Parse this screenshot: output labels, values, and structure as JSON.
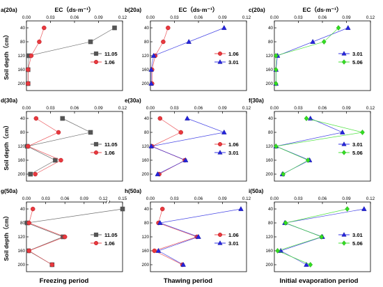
{
  "figure": {
    "ylabel": "Soil depth（cm）",
    "column_labels": [
      "Freezing period",
      "Thawing period",
      "Initial evaporation period"
    ]
  },
  "colors": {
    "11.05": "#555555",
    "1.06": "#e8393f",
    "3.01": "#2424e0",
    "5.06": "#33dd22"
  },
  "chart_data": [
    {
      "type": "line",
      "panel": "a(20a)",
      "xlabel": "EC（ds·m⁻¹）",
      "xlim": [
        0,
        0.12
      ],
      "xticks": [
        0.0,
        0.03,
        0.06,
        0.09,
        0.12
      ],
      "xtick_labels": [
        "0.00",
        "0.03",
        "0.06",
        "0.09",
        "0.12"
      ],
      "ylim": [
        20,
        220
      ],
      "yticks": [
        40,
        80,
        120,
        160,
        200
      ],
      "series": [
        {
          "name": "11.05",
          "marker": "square",
          "x": [
            0.11,
            0.08,
            0.003,
            0.002,
            0.002
          ],
          "y": [
            40,
            80,
            120,
            160,
            200
          ]
        },
        {
          "name": "1.06",
          "marker": "circle",
          "x": [
            0.022,
            0.016,
            0.006,
            0.002,
            0.002
          ],
          "y": [
            40,
            80,
            120,
            160,
            200
          ]
        }
      ]
    },
    {
      "type": "line",
      "panel": "b(20a)",
      "xlabel": "EC（ds·m⁻¹）",
      "xlim": [
        0,
        0.12
      ],
      "xticks": [
        0.0,
        0.03,
        0.06,
        0.09,
        0.12
      ],
      "xtick_labels": [
        "0.00",
        "0.03",
        "0.06",
        "0.09",
        "0.12"
      ],
      "ylim": [
        20,
        220
      ],
      "yticks": [
        40,
        80,
        120,
        160,
        200
      ],
      "series": [
        {
          "name": "1.06",
          "marker": "circle",
          "x": [
            0.022,
            0.016,
            0.006,
            0.002,
            0.002
          ],
          "y": [
            40,
            80,
            120,
            160,
            200
          ]
        },
        {
          "name": "3.01",
          "marker": "triangle",
          "x": [
            0.092,
            0.048,
            0.004,
            0.001,
            0.001
          ],
          "y": [
            40,
            80,
            120,
            160,
            200
          ]
        }
      ]
    },
    {
      "type": "line",
      "panel": "c(20a)",
      "xlabel": "EC（ds·m⁻¹）",
      "xlim": [
        0,
        0.12
      ],
      "xticks": [
        0.0,
        0.03,
        0.06,
        0.09,
        0.12
      ],
      "xtick_labels": [
        "0.00",
        "0.03",
        "0.06",
        "0.09",
        "0.12"
      ],
      "ylim": [
        20,
        220
      ],
      "yticks": [
        40,
        80,
        120,
        160,
        200
      ],
      "series": [
        {
          "name": "3.01",
          "marker": "triangle",
          "x": [
            0.092,
            0.048,
            0.004,
            0.002,
            0.002
          ],
          "y": [
            40,
            80,
            120,
            160,
            200
          ]
        },
        {
          "name": "5.06",
          "marker": "diamond",
          "x": [
            0.08,
            0.062,
            0.002,
            0.002,
            0.002
          ],
          "y": [
            40,
            80,
            120,
            160,
            200
          ]
        }
      ]
    },
    {
      "type": "line",
      "panel": "d(30a)",
      "xlabel": "",
      "xlim": [
        0,
        0.12
      ],
      "xticks": [
        0.0,
        0.03,
        0.06,
        0.09,
        0.12
      ],
      "xtick_labels": [
        "0.00",
        "0.03",
        "0.06",
        "0.09",
        "0.12"
      ],
      "ylim": [
        20,
        220
      ],
      "yticks": [
        40,
        80,
        120,
        160,
        200
      ],
      "series": [
        {
          "name": "11.05",
          "marker": "square",
          "x": [
            0.045,
            0.08,
            0.001,
            0.036,
            0.005
          ],
          "y": [
            40,
            80,
            120,
            160,
            200
          ]
        },
        {
          "name": "1.06",
          "marker": "circle",
          "x": [
            0.012,
            0.04,
            0.002,
            0.043,
            0.011
          ],
          "y": [
            40,
            80,
            120,
            160,
            200
          ]
        }
      ]
    },
    {
      "type": "line",
      "panel": "e(30a)",
      "xlabel": "",
      "xlim": [
        0,
        0.12
      ],
      "xticks": [
        0.0,
        0.03,
        0.06,
        0.09,
        0.12
      ],
      "xtick_labels": [
        "0.00",
        "0.03",
        "0.06",
        "0.09",
        "0.12"
      ],
      "ylim": [
        20,
        220
      ],
      "yticks": [
        40,
        80,
        120,
        160,
        200
      ],
      "series": [
        {
          "name": "1.06",
          "marker": "circle",
          "x": [
            0.012,
            0.038,
            0.002,
            0.043,
            0.011
          ],
          "y": [
            40,
            80,
            120,
            160,
            200
          ]
        },
        {
          "name": "3.01",
          "marker": "triangle",
          "x": [
            0.046,
            0.092,
            0.001,
            0.044,
            0.009
          ],
          "y": [
            40,
            80,
            120,
            160,
            200
          ]
        }
      ]
    },
    {
      "type": "line",
      "panel": "f(30a)",
      "xlabel": "",
      "xlim": [
        0,
        0.12
      ],
      "xticks": [
        0.0,
        0.03,
        0.06,
        0.09,
        0.12
      ],
      "xtick_labels": [
        "0.00",
        "0.03",
        "0.06",
        "0.09",
        "0.12"
      ],
      "ylim": [
        20,
        220
      ],
      "yticks": [
        40,
        80,
        120,
        160,
        200
      ],
      "series": [
        {
          "name": "3.01",
          "marker": "triangle",
          "x": [
            0.045,
            0.085,
            0.002,
            0.044,
            0.01
          ],
          "y": [
            40,
            80,
            120,
            160,
            200
          ]
        },
        {
          "name": "5.06",
          "marker": "diamond",
          "x": [
            0.04,
            0.11,
            0.002,
            0.042,
            0.011
          ],
          "y": [
            40,
            80,
            120,
            160,
            200
          ]
        }
      ]
    },
    {
      "type": "line",
      "panel": "g(50a)",
      "xlabel": "",
      "xlim": [
        0,
        0.15
      ],
      "xticks": [
        0.0,
        0.03,
        0.06,
        0.09,
        0.12,
        0.15
      ],
      "xtick_labels": [
        "0.00",
        "0.03",
        "0.06",
        "0.09",
        "0.12",
        "0.15"
      ],
      "axis_break_after": 0.12,
      "ylim": [
        20,
        220
      ],
      "yticks": [
        40,
        80,
        120,
        160,
        200
      ],
      "series": [
        {
          "name": "11.05",
          "marker": "square",
          "x": [
            0.15,
            0.001,
            0.057,
            0.003,
            0.04
          ],
          "y": [
            40,
            80,
            120,
            160,
            200
          ]
        },
        {
          "name": "1.06",
          "marker": "circle",
          "x": [
            0.01,
            0.004,
            0.06,
            0.004,
            0.04
          ],
          "y": [
            40,
            80,
            120,
            160,
            200
          ]
        }
      ]
    },
    {
      "type": "line",
      "panel": "h(50a)",
      "xlabel": "",
      "xlim": [
        0,
        0.12
      ],
      "xticks": [
        0.0,
        0.03,
        0.06,
        0.09,
        0.12
      ],
      "xtick_labels": [
        "0.00",
        "0.03",
        "0.06",
        "0.09",
        "0.12"
      ],
      "ylim": [
        20,
        220
      ],
      "yticks": [
        40,
        80,
        120,
        160,
        200
      ],
      "series": [
        {
          "name": "1.06",
          "marker": "circle",
          "x": [
            0.015,
            0.01,
            0.058,
            0.005,
            0.04
          ],
          "y": [
            40,
            80,
            120,
            160,
            200
          ]
        },
        {
          "name": "3.01",
          "marker": "triangle",
          "x": [
            0.113,
            0.012,
            0.06,
            0.01,
            0.041
          ],
          "y": [
            40,
            80,
            120,
            160,
            200
          ]
        }
      ]
    },
    {
      "type": "line",
      "panel": "i(50a)",
      "xlabel": "",
      "xlim": [
        0,
        0.12
      ],
      "xticks": [
        0.0,
        0.03,
        0.06,
        0.09,
        0.12
      ],
      "xtick_labels": [
        "0.00",
        "0.03",
        "0.06",
        "0.09",
        "0.12"
      ],
      "ylim": [
        20,
        220
      ],
      "yticks": [
        40,
        80,
        120,
        160,
        200
      ],
      "series": [
        {
          "name": "3.01",
          "marker": "triangle",
          "x": [
            0.112,
            0.013,
            0.06,
            0.008,
            0.04
          ],
          "y": [
            40,
            80,
            120,
            160,
            200
          ]
        },
        {
          "name": "5.06",
          "marker": "diamond",
          "x": [
            0.091,
            0.014,
            0.059,
            0.004,
            0.045
          ],
          "y": [
            40,
            80,
            120,
            160,
            200
          ]
        }
      ]
    }
  ]
}
